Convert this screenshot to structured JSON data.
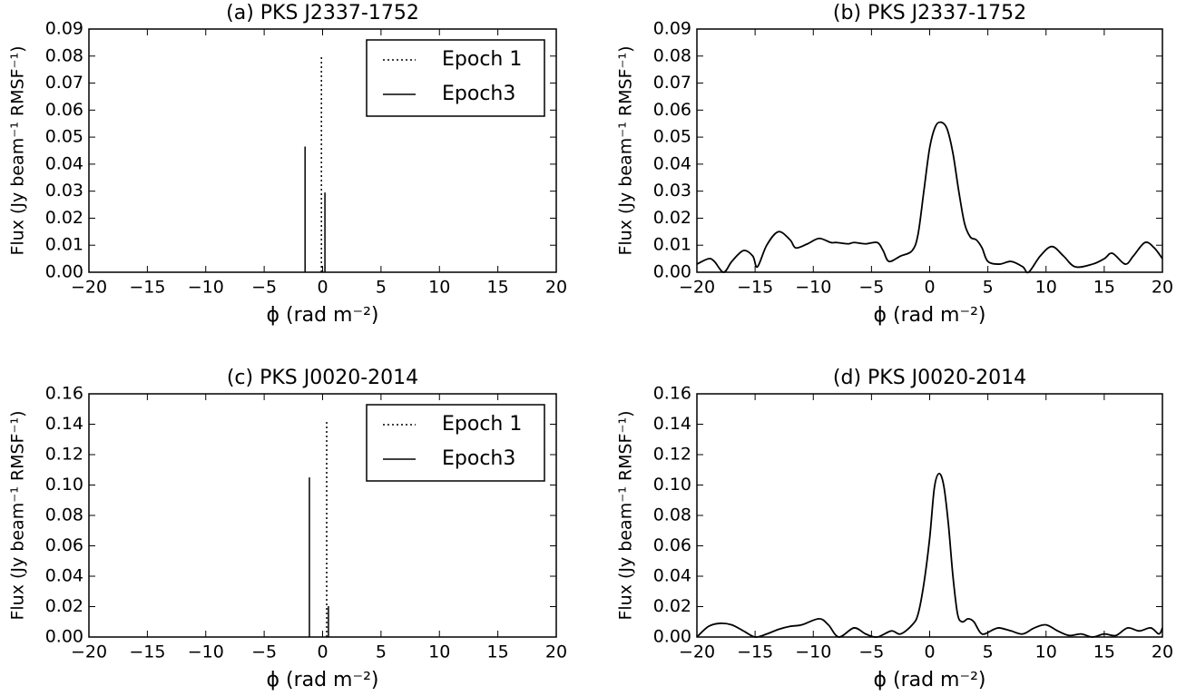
{
  "chart_data": [
    {
      "type": "stem",
      "title": "(a) PKS J2337-1752",
      "xlabel": "ϕ (rad m⁻²)",
      "ylabel": "Flux (Jy beam⁻¹ RMSF⁻¹)",
      "xlim": [
        -20,
        20
      ],
      "ylim": [
        0,
        0.09
      ],
      "xticks": [
        {
          "value": -20,
          "label": "−20"
        },
        {
          "value": -15,
          "label": "−15"
        },
        {
          "value": -10,
          "label": "−10"
        },
        {
          "value": -5,
          "label": "−5"
        },
        0,
        5,
        10,
        15,
        20
      ],
      "yticks": [
        {
          "value": 0,
          "label": "0.00"
        },
        0.01,
        0.02,
        0.03,
        0.04,
        0.05,
        0.06,
        0.07,
        0.08,
        0.09
      ],
      "legend": "upper right",
      "series": [
        {
          "name": "Epoch 1",
          "color": "#000000",
          "linestyle": "dotted",
          "x": [
            -0.1
          ],
          "values": [
            0.08
          ]
        },
        {
          "name": "Epoch3",
          "color": "#000000",
          "linestyle": "solid",
          "x": [
            -1.5,
            0.2
          ],
          "values": [
            0.0465,
            0.0295
          ]
        }
      ]
    },
    {
      "type": "line",
      "title": "(b) PKS J2337-1752",
      "xlabel": "ϕ (rad m⁻²)",
      "ylabel": "Flux (Jy beam⁻¹ RMSF⁻¹)",
      "xlim": [
        -20,
        20
      ],
      "ylim": [
        0,
        0.09
      ],
      "xticks": [
        {
          "value": -20,
          "label": "−20"
        },
        {
          "value": -15,
          "label": "−15"
        },
        {
          "value": -10,
          "label": "−10"
        },
        {
          "value": -5,
          "label": "−5"
        },
        0,
        5,
        10,
        15,
        20
      ],
      "yticks": [
        {
          "value": 0,
          "label": "0.00"
        },
        0.01,
        0.02,
        0.03,
        0.04,
        0.05,
        0.06,
        0.07,
        0.08,
        0.09
      ],
      "color": "#000000",
      "x": [
        -20,
        -19,
        -18.5,
        -17.7,
        -17,
        -16,
        -15.2,
        -14.8,
        -14,
        -13,
        -12,
        -11.5,
        -10.5,
        -9.5,
        -8.5,
        -8,
        -7,
        -6.5,
        -5.5,
        -4.5,
        -4,
        -3.5,
        -2.5,
        -1.5,
        -1,
        -0.5,
        0,
        0.5,
        1,
        1.5,
        2,
        2.5,
        3,
        3.5,
        4,
        4.5,
        5,
        6,
        7,
        8,
        8.5,
        9.5,
        10.5,
        11.5,
        12.5,
        14,
        15,
        15.7,
        16.8,
        17.5,
        18.5,
        19.3,
        20
      ],
      "values": [
        0.003,
        0.005,
        0.004,
        0,
        0.004,
        0.008,
        0.006,
        0.002,
        0.01,
        0.015,
        0.012,
        0.009,
        0.0105,
        0.0125,
        0.011,
        0.011,
        0.0105,
        0.011,
        0.0105,
        0.011,
        0.008,
        0.004,
        0.006,
        0.008,
        0.014,
        0.03,
        0.046,
        0.054,
        0.0555,
        0.053,
        0.044,
        0.03,
        0.018,
        0.013,
        0.012,
        0.009,
        0.004,
        0.003,
        0.004,
        0.002,
        0,
        0.006,
        0.0095,
        0.006,
        0.002,
        0.003,
        0.005,
        0.007,
        0.003,
        0.006,
        0.011,
        0.009,
        0.005
      ]
    },
    {
      "type": "stem",
      "title": "(c) PKS J0020-2014",
      "xlabel": "ϕ (rad m⁻²)",
      "ylabel": "Flux (Jy beam⁻¹ RMSF⁻¹)",
      "xlim": [
        -20,
        20
      ],
      "ylim": [
        0,
        0.16
      ],
      "xticks": [
        {
          "value": -20,
          "label": "−20"
        },
        {
          "value": -15,
          "label": "−15"
        },
        {
          "value": -10,
          "label": "−10"
        },
        {
          "value": -5,
          "label": "−5"
        },
        0,
        5,
        10,
        15,
        20
      ],
      "yticks": [
        {
          "value": 0,
          "label": "0.00"
        },
        0.02,
        0.04,
        0.06,
        0.08,
        {
          "value": 0.1,
          "label": "0.10"
        },
        0.12,
        0.14,
        0.16
      ],
      "legend": "upper right",
      "series": [
        {
          "name": "Epoch 1",
          "color": "#000000",
          "linestyle": "dotted",
          "x": [
            0.35
          ],
          "values": [
            0.143
          ]
        },
        {
          "name": "Epoch3",
          "color": "#000000",
          "linestyle": "solid",
          "x": [
            -1.13,
            0.5
          ],
          "values": [
            0.105,
            0.0203
          ]
        }
      ]
    },
    {
      "type": "line",
      "title": "(d) PKS J0020-2014",
      "xlabel": "ϕ (rad m⁻²)",
      "ylabel": "Flux (Jy beam⁻¹ RMSF⁻¹)",
      "xlim": [
        -20,
        20
      ],
      "ylim": [
        0,
        0.16
      ],
      "xticks": [
        {
          "value": -20,
          "label": "−20"
        },
        {
          "value": -15,
          "label": "−15"
        },
        {
          "value": -10,
          "label": "−10"
        },
        {
          "value": -5,
          "label": "−5"
        },
        0,
        5,
        10,
        15,
        20
      ],
      "yticks": [
        {
          "value": 0,
          "label": "0.00"
        },
        0.02,
        0.04,
        0.06,
        0.08,
        {
          "value": 0.1,
          "label": "0.10"
        },
        0.12,
        0.14,
        0.16
      ],
      "color": "#000000",
      "x": [
        -20,
        -19,
        -18,
        -17,
        -16,
        -15,
        -14,
        -13,
        -12,
        -11,
        -9.5,
        -8.7,
        -7.8,
        -6.5,
        -5.5,
        -4.5,
        -3.3,
        -2.5,
        -1.5,
        -1,
        -0.5,
        0,
        0.4,
        0.8,
        1.2,
        1.6,
        2,
        2.4,
        2.8,
        3.3,
        3.8,
        4.5,
        5.5,
        6,
        7,
        8,
        9,
        10,
        11,
        12,
        13,
        14,
        15,
        16,
        17,
        18,
        19,
        19.7,
        20
      ],
      "values": [
        0,
        0.007,
        0.009,
        0.008,
        0.004,
        0,
        0.002,
        0.005,
        0.007,
        0.008,
        0.012,
        0.008,
        0,
        0.006,
        0.002,
        0,
        0.004,
        0.002,
        0.008,
        0.015,
        0.035,
        0.065,
        0.098,
        0.1075,
        0.1,
        0.075,
        0.04,
        0.015,
        0.01,
        0.012,
        0.01,
        0.002,
        0.005,
        0.006,
        0.004,
        0.002,
        0.006,
        0.008,
        0.004,
        0.001,
        0.002,
        0,
        0.002,
        0.001,
        0.006,
        0.004,
        0.006,
        0.002,
        0.006
      ]
    }
  ]
}
